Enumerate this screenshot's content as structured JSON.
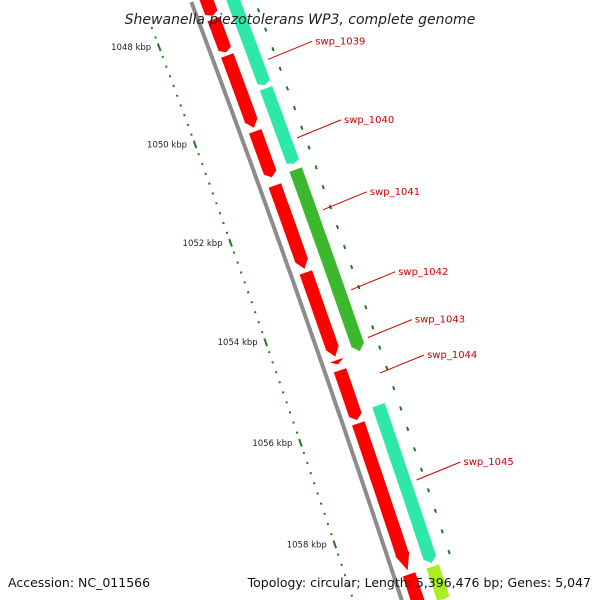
{
  "title": "Shewanella piezotolerans WP3, complete genome",
  "footer": {
    "accession": "Accession: NC_011566",
    "summary": "Topology: circular; Length: 5,396,476 bp; Genes: 5,047"
  },
  "colors": {
    "backbone": "#8c8c8c",
    "ticks": "#1f7a1f",
    "label_color": "#cc0000",
    "red": "#ff0000",
    "aqua": "#2ee8a8",
    "green": "#3cb82e",
    "lime": "#aaee22",
    "olive": "#8aa830"
  },
  "ruler": [
    {
      "kbp": 1048,
      "label": "1048 kbp"
    },
    {
      "kbp": 1050,
      "label": "1050 kbp"
    },
    {
      "kbp": 1052,
      "label": "1052 kbp"
    },
    {
      "kbp": 1054,
      "label": "1054 kbp"
    },
    {
      "kbp": 1056,
      "label": "1056 kbp"
    },
    {
      "kbp": 1058,
      "label": "1058 kbp"
    }
  ],
  "genes": [
    {
      "label": "swp_1039"
    },
    {
      "label": "swp_1040"
    },
    {
      "label": "swp_1041"
    },
    {
      "label": "swp_1042"
    },
    {
      "label": "swp_1043"
    },
    {
      "label": "swp_1044"
    },
    {
      "label": "swp_1045"
    }
  ]
}
